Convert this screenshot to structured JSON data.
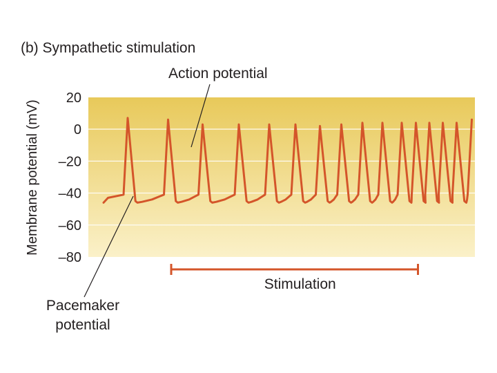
{
  "chart_data": {
    "type": "line",
    "title": "(b) Sympathetic stimulation",
    "ylabel": "Membrane potential (mV)",
    "xlabel": "",
    "ylim": [
      -80,
      20
    ],
    "yticks": [
      {
        "value": 20,
        "label": "20"
      },
      {
        "value": 0,
        "label": "0"
      },
      {
        "value": -20,
        "label": "–20"
      },
      {
        "value": -40,
        "label": "–40"
      },
      {
        "value": -60,
        "label": "–60"
      },
      {
        "value": -80,
        "label": "–80"
      }
    ],
    "grid": true,
    "background_gradient": [
      "#e8c95a",
      "#fbf1c9"
    ],
    "trace_color": "#d4552a",
    "baseline_mV": -46,
    "threshold_mV": -41,
    "spikes": [
      {
        "t": 0.07,
        "peak": 7
      },
      {
        "t": 0.187,
        "peak": 6
      },
      {
        "t": 0.287,
        "peak": 3
      },
      {
        "t": 0.392,
        "peak": 3
      },
      {
        "t": 0.48,
        "peak": 3
      },
      {
        "t": 0.556,
        "peak": 3
      },
      {
        "t": 0.627,
        "peak": 2
      },
      {
        "t": 0.689,
        "peak": 3
      },
      {
        "t": 0.75,
        "peak": 4
      },
      {
        "t": 0.808,
        "peak": 4
      },
      {
        "t": 0.864,
        "peak": 4
      },
      {
        "t": 0.905,
        "peak": 4
      },
      {
        "t": 0.944,
        "peak": 4
      },
      {
        "t": 0.983,
        "peak": 4
      },
      {
        "t": 1.023,
        "peak": 4
      },
      {
        "t": 1.067,
        "peak": 6
      }
    ],
    "stimulation": {
      "label": "Stimulation",
      "start_t": 0.16,
      "end_t": 0.905
    },
    "annotations": {
      "action_potential": "Action potential",
      "pacemaker_line1": "Pacemaker",
      "pacemaker_line2": "potential"
    }
  }
}
